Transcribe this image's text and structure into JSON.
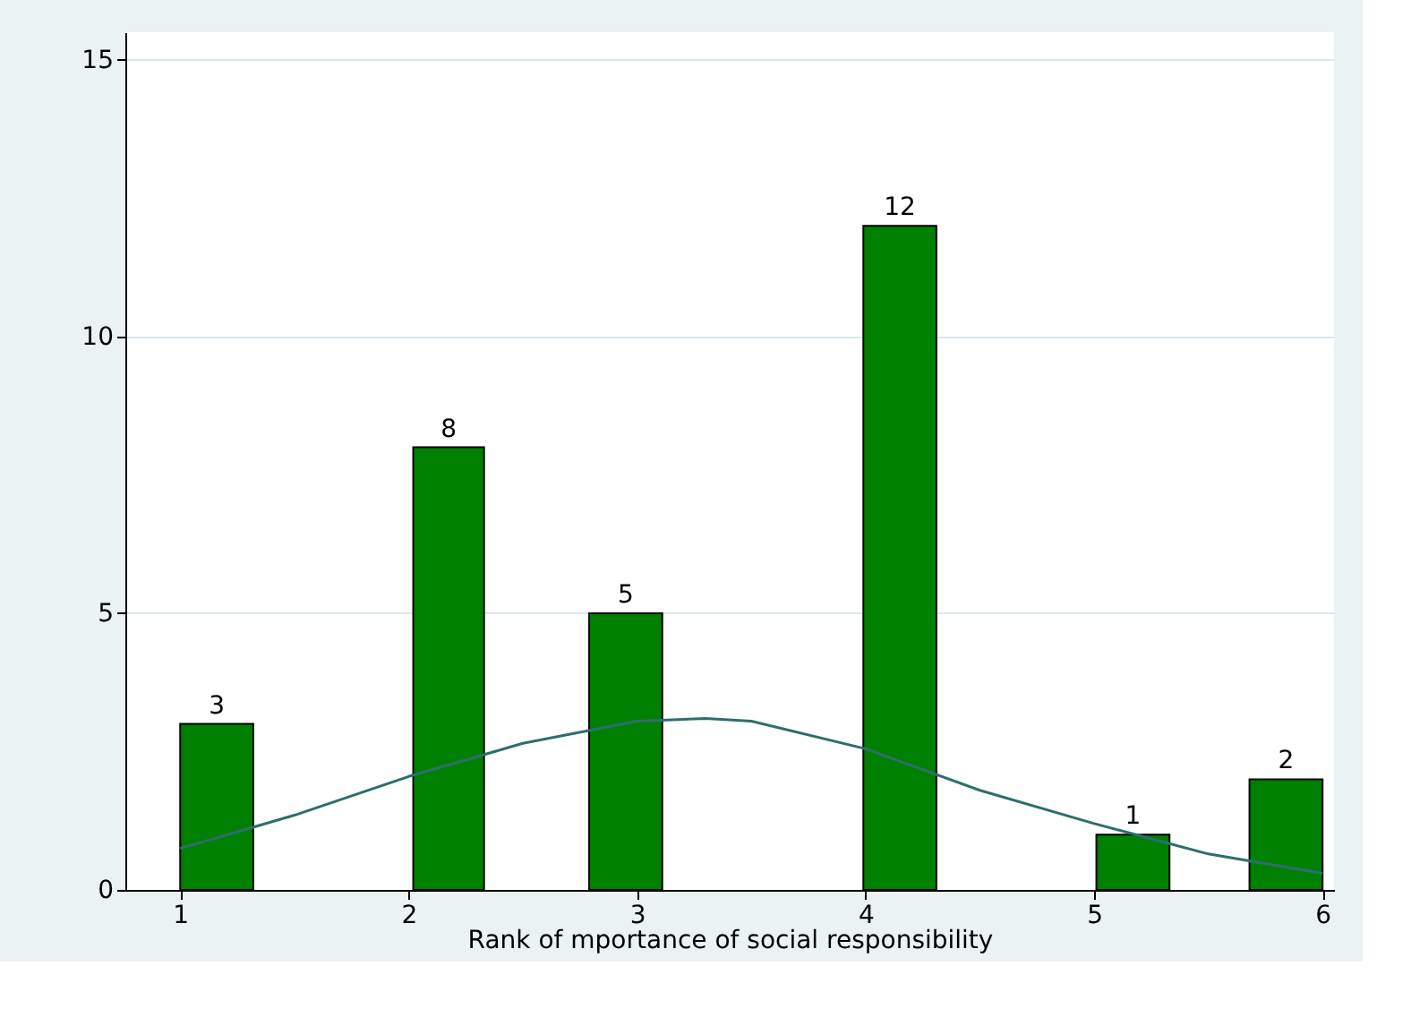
{
  "chart_data": {
    "type": "histogram",
    "xlabel": "Rank of mportance of social responsibility",
    "bins": [
      1,
      1.32,
      2.02,
      2.33,
      2.79,
      3.11,
      3.99,
      4.31,
      5.01,
      5.33,
      5.68,
      6.0
    ],
    "values": [
      3,
      0,
      8,
      0,
      5,
      0,
      12,
      0,
      1,
      0,
      2
    ],
    "value_labels": [
      "3",
      null,
      "8",
      null,
      "5",
      null,
      "12",
      null,
      "1",
      null,
      "2"
    ],
    "color": "#008000",
    "series": [
      {
        "type": "line",
        "color": "#2e6e6e",
        "x": [
          1,
          1.5,
          2,
          2.5,
          3,
          3.3,
          3.5,
          4,
          4.5,
          5,
          5.5,
          6
        ],
        "values": [
          0.75,
          1.35,
          2.05,
          2.65,
          3.05,
          3.1,
          3.05,
          2.55,
          1.8,
          1.2,
          0.65,
          0.3
        ]
      }
    ],
    "xlim": [
      0.76,
      6.05
    ],
    "ylim": [
      0,
      15.5
    ],
    "xticks": [
      1,
      2,
      3,
      4,
      5,
      6
    ],
    "yticks": [
      0,
      5,
      10,
      15
    ],
    "grid": "y"
  }
}
